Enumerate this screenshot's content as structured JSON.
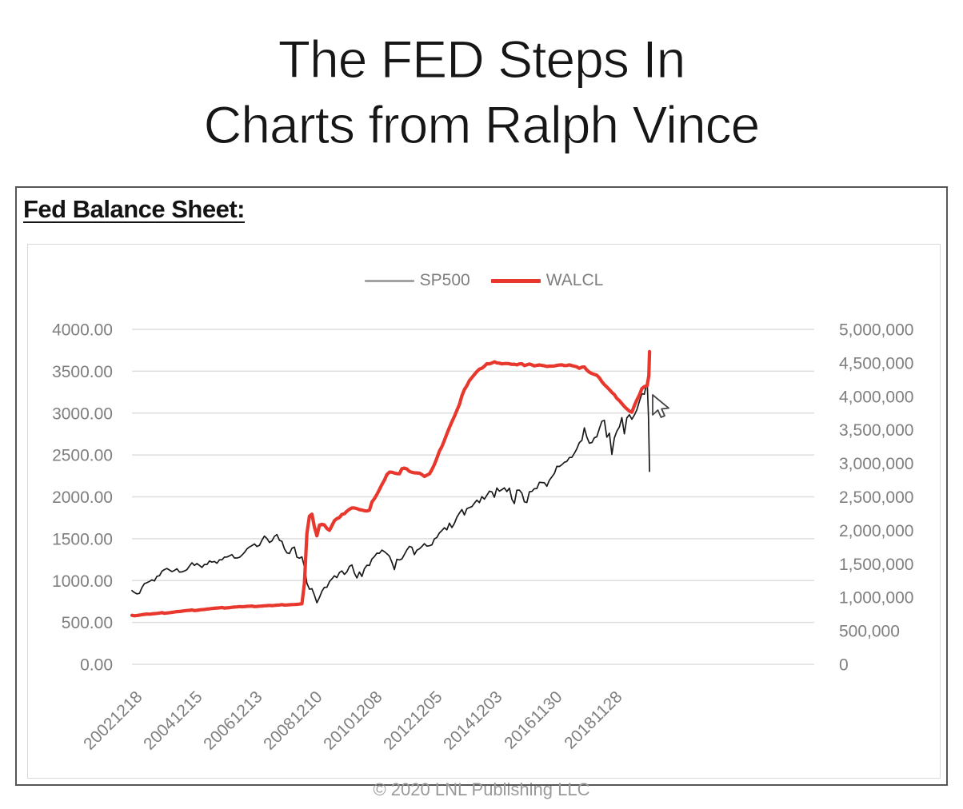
{
  "title": {
    "line1": "The FED Steps In",
    "line2": "Charts from Ralph Vince"
  },
  "section_label": "Fed Balance Sheet:",
  "footer": "© 2020 LNL Publishing LLC",
  "chart_data": {
    "type": "line",
    "legend": [
      {
        "label": "SP500",
        "color": "#a3a3a3",
        "sample_thickness": 3
      },
      {
        "label": "WALCL",
        "color": "#e8382d",
        "sample_thickness": 5
      }
    ],
    "left_axis": {
      "min": 0,
      "max": 4000,
      "ticks": [
        "4000.00",
        "3500.00",
        "3000.00",
        "2500.00",
        "2000.00",
        "1500.00",
        "1000.00",
        "500.00",
        "0.00"
      ]
    },
    "right_axis": {
      "min": 0,
      "max": 5000000,
      "ticks": [
        "5,000,000",
        "4,500,000",
        "4,000,000",
        "3,500,000",
        "3,000,000",
        "2,500,000",
        "2,000,000",
        "1,500,000",
        "1,000,000",
        "500,000",
        "0"
      ]
    },
    "x_ticks": [
      "20021218",
      "20041215",
      "20061213",
      "20081210",
      "20101208",
      "20121205",
      "20141203",
      "20161130",
      "20181128"
    ],
    "grid_color": "#dedede",
    "series": [
      {
        "name": "SP500",
        "axis": "left",
        "color": "#1a1a1a",
        "width": 1.7,
        "x0": 2002.9583,
        "dx": 0.0833333,
        "values": [
          880,
          856,
          841,
          848,
          917,
          964,
          975,
          990,
          1008,
          996,
          1051,
          1058,
          1112,
          1131,
          1145,
          1126,
          1107,
          1121,
          1141,
          1102,
          1104,
          1115,
          1130,
          1174,
          1212,
          1181,
          1204,
          1181,
          1157,
          1192,
          1191,
          1234,
          1220,
          1229,
          1207,
          1249,
          1248,
          1280,
          1281,
          1295,
          1311,
          1270,
          1270,
          1277,
          1304,
          1336,
          1378,
          1401,
          1418,
          1438,
          1407,
          1421,
          1482,
          1531,
          1503,
          1455,
          1474,
          1527,
          1549,
          1481,
          1468,
          1379,
          1331,
          1323,
          1386,
          1400,
          1280,
          1267,
          1283,
          1166,
          969,
          896,
          903,
          826,
          735,
          798,
          873,
          919,
          919,
          987,
          1021,
          1057,
          1036,
          1096,
          1115,
          1074,
          1104,
          1169,
          1187,
          1089,
          1031,
          1102,
          1049,
          1141,
          1183,
          1181,
          1258,
          1286,
          1327,
          1326,
          1364,
          1345,
          1321,
          1292,
          1219,
          1131,
          1253,
          1247,
          1258,
          1312,
          1366,
          1408,
          1398,
          1310,
          1362,
          1379,
          1407,
          1441,
          1412,
          1416,
          1426,
          1498,
          1515,
          1569,
          1598,
          1631,
          1606,
          1686,
          1633,
          1682,
          1757,
          1806,
          1848,
          1783,
          1859,
          1872,
          1884,
          1924,
          1960,
          1931,
          2003,
          1972,
          2018,
          2068,
          2059,
          1995,
          2105,
          2068,
          2086,
          2107,
          2063,
          2104,
          1972,
          1920,
          2079,
          2080,
          2044,
          1940,
          1932,
          2060,
          2065,
          2097,
          2099,
          2174,
          2171,
          2168,
          2126,
          2199,
          2239,
          2279,
          2364,
          2363,
          2384,
          2412,
          2423,
          2470,
          2472,
          2519,
          2575,
          2648,
          2674,
          2824,
          2714,
          2641,
          2648,
          2705,
          2718,
          2816,
          2902,
          2914,
          2712,
          2760,
          2507,
          2704,
          2784,
          2834,
          2946,
          2752,
          2942,
          2980,
          2926,
          2977,
          3038,
          3141,
          3231,
          3226
        ],
        "extra": [
          [
            2020.135,
            3386
          ],
          [
            2020.18,
            2954
          ],
          [
            2020.215,
            2305
          ]
        ]
      },
      {
        "name": "WALCL",
        "axis": "right",
        "color": "#e8382d",
        "width": 4.2,
        "x0": 2002.9583,
        "dx": 0.0833333,
        "values": [
          732000,
          724000,
          729000,
          734000,
          741000,
          746000,
          751000,
          748000,
          753000,
          757000,
          760000,
          765000,
          772000,
          761000,
          766000,
          771000,
          776000,
          781000,
          786000,
          789000,
          794000,
          798000,
          803000,
          806000,
          811000,
          802000,
          806000,
          811000,
          816000,
          819000,
          824000,
          828000,
          833000,
          836000,
          840000,
          843000,
          848000,
          839000,
          843000,
          846000,
          851000,
          854000,
          857000,
          861000,
          859000,
          862000,
          865000,
          867000,
          870000,
          861000,
          864000,
          867000,
          870000,
          873000,
          876000,
          879000,
          876000,
          880000,
          883000,
          886000,
          891000,
          884000,
          886000,
          889000,
          891000,
          893000,
          895000,
          898000,
          905000,
          1211000,
          1953000,
          2213000,
          2241000,
          2050000,
          1918000,
          2078000,
          2090000,
          2080000,
          2026000,
          2000000,
          2071000,
          2144000,
          2174000,
          2192000,
          2237000,
          2248000,
          2285000,
          2314000,
          2335000,
          2333000,
          2325000,
          2309000,
          2303000,
          2292000,
          2289000,
          2301000,
          2423000,
          2473000,
          2535000,
          2610000,
          2684000,
          2749000,
          2832000,
          2869000,
          2867000,
          2856000,
          2846000,
          2844000,
          2920000,
          2928000,
          2916000,
          2880000,
          2866000,
          2858000,
          2857000,
          2853000,
          2833000,
          2804000,
          2823000,
          2843000,
          2907000,
          2983000,
          3078000,
          3182000,
          3250000,
          3343000,
          3440000,
          3535000,
          3620000,
          3700000,
          3790000,
          3880000,
          4010000,
          4102000,
          4159000,
          4236000,
          4280000,
          4326000,
          4370000,
          4407000,
          4420000,
          4450000,
          4487000,
          4486000,
          4498000,
          4516000,
          4500000,
          4495000,
          4484000,
          4489000,
          4490000,
          4486000,
          4477000,
          4480000,
          4470000,
          4485000,
          4487000,
          4459000,
          4470000,
          4482000,
          4470000,
          4455000,
          4463000,
          4469000,
          4462000,
          4456000,
          4446000,
          4451000,
          4451000,
          4454000,
          4462000,
          4468000,
          4470000,
          4459000,
          4461000,
          4470000,
          4459000,
          4450000,
          4440000,
          4418000,
          4437000,
          4439000,
          4393000,
          4360000,
          4341000,
          4327000,
          4315000,
          4276000,
          4218000,
          4175000,
          4140000,
          4100000,
          4058000,
          4026000,
          3970000,
          3936000,
          3891000,
          3848000,
          3813000,
          3780000,
          3761000,
          3860000,
          3945000,
          4020000,
          4116000,
          4146000
        ],
        "extra": [
          [
            2020.135,
            4159000
          ],
          [
            2020.19,
            4310000
          ],
          [
            2020.215,
            4668000
          ]
        ]
      }
    ]
  }
}
